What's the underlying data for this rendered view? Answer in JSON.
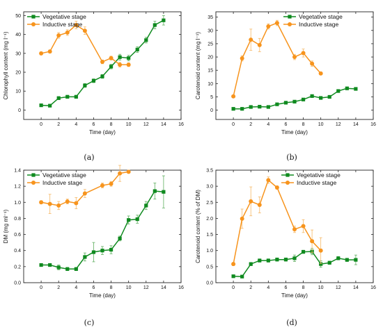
{
  "colors": {
    "vegetative": "#0f8a1f",
    "inductive": "#f7941d",
    "error": "#f5b866",
    "error_veg": "#5fae5f"
  },
  "chart_data": [
    {
      "type": "line",
      "panel_label": "(a)",
      "xlabel": "Time (day)",
      "ylabel": "Chlorophyll content (mg l⁻¹)",
      "xlim": [
        -2,
        16
      ],
      "ylim": [
        -5,
        52
      ],
      "xticks": [
        0,
        2,
        4,
        6,
        8,
        10,
        12,
        14,
        16
      ],
      "yticks": [
        0,
        10,
        20,
        30,
        40,
        50
      ],
      "ytick_labels": [
        "0",
        "10",
        "20",
        "30",
        "40",
        "50"
      ],
      "grid": false,
      "legend_position": "top-left",
      "series": [
        {
          "name": "Vegetative stage",
          "marker": "square",
          "x": [
            0,
            1,
            2,
            3,
            4,
            5,
            6,
            7,
            8,
            9,
            10,
            11,
            12,
            13,
            14
          ],
          "y": [
            2.5,
            2.3,
            6.3,
            7,
            7,
            13,
            15.5,
            17.8,
            23,
            28,
            27.5,
            32,
            37,
            45,
            47.5
          ],
          "err": [
            0.5,
            0.5,
            0.8,
            0.8,
            0.8,
            1,
            1,
            1,
            1.2,
            1.5,
            1.5,
            1.5,
            1.5,
            2,
            2.5
          ]
        },
        {
          "name": "Inductive stage",
          "marker": "circle",
          "x": [
            0,
            1,
            2,
            3,
            4,
            5,
            7,
            8,
            9,
            10
          ],
          "y": [
            30,
            31,
            39.5,
            41,
            45,
            42,
            25.5,
            27.5,
            24,
            24
          ],
          "err": [
            0.8,
            0.8,
            1.5,
            1.5,
            2,
            2,
            1,
            1,
            1.2,
            1
          ]
        }
      ]
    },
    {
      "type": "line",
      "panel_label": "(b)",
      "xlabel": "Time (day)",
      "ylabel": "Carotenoid content (mg l⁻¹)",
      "xlim": [
        -2,
        16
      ],
      "ylim": [
        -3.5,
        37
      ],
      "xticks": [
        0,
        2,
        4,
        6,
        8,
        10,
        12,
        14,
        16
      ],
      "yticks": [
        0,
        5,
        10,
        15,
        20,
        25,
        30,
        35
      ],
      "ytick_labels": [
        "0",
        "5",
        "10",
        "15",
        "20",
        "25",
        "30",
        "35"
      ],
      "grid": false,
      "legend_position": "top-right",
      "series": [
        {
          "name": "Vegetative stage",
          "marker": "square",
          "x": [
            0,
            1,
            2,
            3,
            4,
            5,
            6,
            7,
            8,
            9,
            10,
            11,
            12,
            13,
            14
          ],
          "y": [
            0.5,
            0.5,
            1.2,
            1.3,
            1.2,
            2.2,
            2.8,
            3.2,
            4,
            5.3,
            4.6,
            5,
            7.2,
            8.2,
            8
          ],
          "err": [
            0.2,
            0.2,
            0.3,
            0.3,
            0.3,
            0.3,
            0.3,
            0.3,
            0.4,
            0.4,
            0.4,
            0.4,
            0.5,
            0.5,
            0.5
          ]
        },
        {
          "name": "Inductive stage",
          "marker": "circle",
          "x": [
            0,
            1,
            2,
            3,
            4,
            5,
            7,
            8,
            9,
            10
          ],
          "y": [
            5.2,
            19.5,
            26.5,
            24.5,
            31.5,
            32.8,
            20,
            21.5,
            17.5,
            13.8
          ],
          "err": [
            0.5,
            1,
            4,
            2.5,
            1,
            1,
            1,
            1.5,
            1,
            0.5
          ]
        }
      ]
    },
    {
      "type": "line",
      "panel_label": "(c)",
      "xlabel": "Time (day)",
      "ylabel": "DM (mg ml⁻¹)",
      "xlim": [
        -2,
        16
      ],
      "ylim": [
        0,
        1.4
      ],
      "xticks": [
        0,
        2,
        4,
        6,
        8,
        10,
        12,
        14,
        16
      ],
      "yticks": [
        0,
        0.2,
        0.4,
        0.6,
        0.8,
        1.0,
        1.2,
        1.4
      ],
      "ytick_labels": [
        "0.0",
        "0.2",
        "0.4",
        "0.6",
        "0.8",
        "1.0",
        "1.2",
        "1.4"
      ],
      "grid": false,
      "legend_position": "top-left",
      "series": [
        {
          "name": "Vegetative stage",
          "marker": "square",
          "x": [
            0,
            1,
            2,
            3,
            4,
            5,
            6,
            7,
            8,
            9,
            10,
            11,
            12,
            13,
            14
          ],
          "y": [
            0.22,
            0.22,
            0.19,
            0.17,
            0.17,
            0.32,
            0.38,
            0.4,
            0.41,
            0.55,
            0.78,
            0.79,
            0.96,
            1.14,
            1.13
          ],
          "err": [
            0.01,
            0.01,
            0.03,
            0.02,
            0.02,
            0.05,
            0.12,
            0.05,
            0.05,
            0.03,
            0.05,
            0.05,
            0.05,
            0.1,
            0.2
          ]
        },
        {
          "name": "Inductive stage",
          "marker": "circle",
          "x": [
            0,
            1,
            2,
            3,
            4,
            5,
            7,
            8,
            9,
            10
          ],
          "y": [
            1.0,
            0.98,
            0.96,
            1.01,
            0.99,
            1.11,
            1.21,
            1.23,
            1.36,
            1.38
          ],
          "err": [
            0.02,
            0.12,
            0.05,
            0.03,
            0.07,
            0.05,
            0.03,
            0.03,
            0.1,
            0.02
          ]
        }
      ]
    },
    {
      "type": "line",
      "panel_label": "(d)",
      "xlabel": "Time (day)",
      "ylabel": "Carotenoid content (% of DM)",
      "xlim": [
        -2,
        16
      ],
      "ylim": [
        0,
        3.5
      ],
      "xticks": [
        0,
        2,
        4,
        6,
        8,
        10,
        12,
        14,
        16
      ],
      "yticks": [
        0,
        0.5,
        1.0,
        1.5,
        2.0,
        2.5,
        3.0,
        3.5
      ],
      "ytick_labels": [
        "0.0",
        "0.5",
        "1.0",
        "1.5",
        "2.0",
        "2.5",
        "3.0",
        "3.5"
      ],
      "grid": false,
      "legend_position": "top-right",
      "series": [
        {
          "name": "Vegetative stage",
          "marker": "square",
          "x": [
            0,
            1,
            2,
            3,
            4,
            5,
            6,
            7,
            8,
            9,
            10,
            11,
            12,
            13,
            14
          ],
          "y": [
            0.2,
            0.19,
            0.58,
            0.69,
            0.69,
            0.72,
            0.72,
            0.76,
            0.96,
            0.97,
            0.58,
            0.62,
            0.76,
            0.71,
            0.71
          ],
          "err": [
            0.02,
            0.02,
            0.05,
            0.05,
            0.05,
            0.05,
            0.05,
            0.1,
            0.05,
            0.1,
            0.1,
            0.05,
            0.05,
            0.05,
            0.15
          ]
        },
        {
          "name": "Inductive stage",
          "marker": "circle",
          "x": [
            0,
            1,
            2,
            3,
            4,
            5,
            7,
            8,
            9,
            10
          ],
          "y": [
            0.58,
            1.99,
            2.53,
            2.42,
            3.19,
            2.96,
            1.66,
            1.76,
            1.29,
            1.0
          ],
          "err": [
            0.05,
            0.3,
            0.45,
            0.25,
            0.1,
            0.05,
            0.1,
            0.2,
            0.35,
            0.4
          ]
        }
      ]
    }
  ]
}
